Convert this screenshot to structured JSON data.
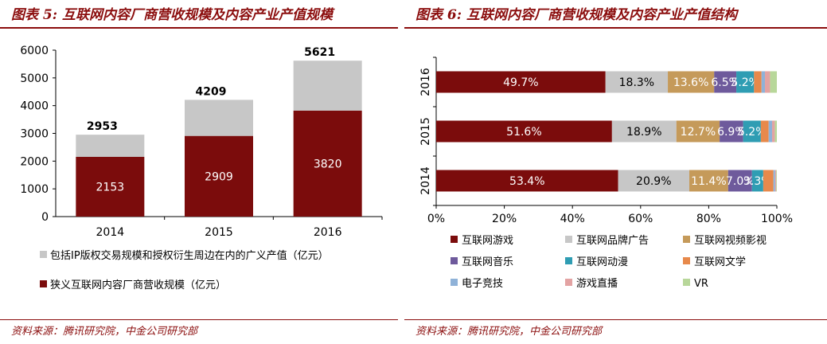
{
  "left": {
    "title": "图表 5:  互联网内容厂商营收规模及内容产业产值规模",
    "source": "资料来源：腾讯研究院，中金公司研究部"
  },
  "right": {
    "title": "图表 6:  互联网内容厂商营收规模及内容产业产值结构",
    "source": "资料来源：腾讯研究院，中金公司研究部"
  },
  "colors": {
    "darkred": "#7b0c0c",
    "lightgray": "#c7c7c7",
    "tan": "#c59a5a",
    "purple": "#6e5a9c",
    "teal": "#2f9db3",
    "orange": "#e7894b",
    "lightblue": "#8fb2d8",
    "pink": "#e3a3a3",
    "lightgreen": "#b8d79a"
  },
  "chart_data": [
    {
      "type": "bar",
      "stacked": true,
      "categories": [
        "2014",
        "2015",
        "2016"
      ],
      "series": [
        {
          "name": "狭义互联网内容厂商营收规模（亿元）",
          "values": [
            2153,
            2909,
            3820
          ],
          "color": "#7b0c0c",
          "labels": [
            "2153",
            "2909",
            "3820"
          ]
        },
        {
          "name": "包括IP版权交易规模和授权衍生周边在内的广义产值（亿元）",
          "values": [
            800,
            1300,
            1801
          ],
          "color": "#c7c7c7"
        }
      ],
      "totals": [
        "2953",
        "4209",
        "5621"
      ],
      "ylim": [
        0,
        6000
      ],
      "yticks": [
        "0",
        "1000",
        "2000",
        "3000",
        "4000",
        "5000",
        "6000"
      ],
      "legend_order": [
        1,
        0
      ],
      "grid": false
    },
    {
      "type": "bar",
      "orientation": "horizontal",
      "stacked": true,
      "percent": true,
      "categories": [
        "2016",
        "2015",
        "2014"
      ],
      "xticks": [
        "0%",
        "20%",
        "40%",
        "60%",
        "80%",
        "100%"
      ],
      "series": [
        {
          "name": "互联网游戏",
          "color": "#7b0c0c",
          "values": [
            49.7,
            51.6,
            53.4
          ],
          "labels": [
            "49.7%",
            "51.6%",
            "53.4%"
          ],
          "label_color": "#ffffff"
        },
        {
          "name": "互联网品牌广告",
          "color": "#c7c7c7",
          "values": [
            18.3,
            18.9,
            20.9
          ],
          "labels": [
            "18.3%",
            "18.9%",
            "20.9%"
          ],
          "label_color": "#000000"
        },
        {
          "name": "互联网视频影视",
          "color": "#c59a5a",
          "values": [
            13.6,
            12.7,
            11.4
          ],
          "labels": [
            "13.6%",
            "12.7%",
            "11.4%"
          ],
          "label_color": "#ffffff"
        },
        {
          "name": "互联网音乐",
          "color": "#6e5a9c",
          "values": [
            6.5,
            6.9,
            7.0
          ],
          "labels": [
            "6.5%",
            "6.9%",
            "7.0%"
          ],
          "label_color": "#ffffff"
        },
        {
          "name": "互联网动漫",
          "color": "#2f9db3",
          "values": [
            5.2,
            5.2,
            3.3
          ],
          "labels": [
            "5.2%",
            "5.2%",
            "3.3%"
          ],
          "label_color": "#ffffff"
        },
        {
          "name": "互联网文学",
          "color": "#e7894b",
          "values": [
            2.2,
            2.3,
            3.0
          ]
        },
        {
          "name": "电子竞技",
          "color": "#8fb2d8",
          "values": [
            1.0,
            1.0,
            0.5
          ]
        },
        {
          "name": "游戏直播",
          "color": "#e3a3a3",
          "values": [
            1.5,
            0.8,
            0.3
          ]
        },
        {
          "name": "VR",
          "color": "#b8d79a",
          "values": [
            2.0,
            0.6,
            0.2
          ]
        }
      ],
      "grid": false
    }
  ]
}
